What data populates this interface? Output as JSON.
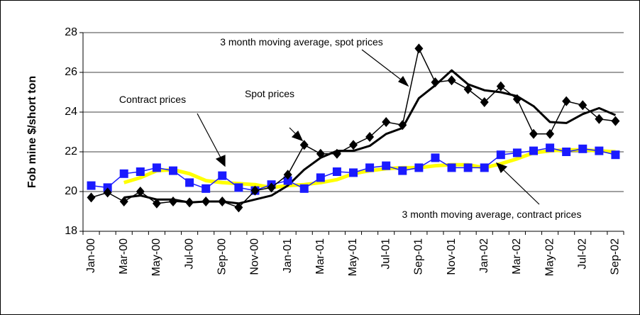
{
  "chart_data": {
    "type": "line",
    "y_label": "Fob mine $/short ton",
    "categories": [
      "Jan-00",
      null,
      "Mar-00",
      null,
      "May-00",
      null,
      "Jul-00",
      null,
      "Sep-00",
      null,
      "Nov-00",
      null,
      "Jan-01",
      null,
      "Mar-01",
      null,
      "May-01",
      null,
      "Jul-01",
      null,
      "Sep-01",
      null,
      "Nov-01",
      null,
      "Jan-02",
      null,
      "Mar-02",
      null,
      "May-02",
      null,
      "Jul-02",
      null,
      "Sep-02"
    ],
    "series": [
      {
        "name": "Spot prices",
        "color": "#000000",
        "marker": "diamond",
        "values": [
          19.7,
          19.95,
          19.5,
          20.0,
          19.4,
          19.5,
          19.45,
          19.5,
          19.5,
          19.2,
          20.05,
          20.2,
          20.85,
          22.35,
          21.9,
          21.9,
          22.35,
          22.75,
          23.5,
          23.35,
          27.2,
          25.5,
          25.6,
          25.15,
          24.5,
          25.3,
          24.65,
          22.9,
          22.9,
          24.55,
          24.35,
          23.65,
          23.55
        ]
      },
      {
        "name": "Contract prices",
        "color": "#1a1aff",
        "marker": "square",
        "values": [
          20.3,
          20.2,
          20.9,
          21.0,
          21.2,
          21.05,
          20.45,
          20.15,
          20.8,
          20.2,
          20.05,
          20.35,
          20.55,
          20.15,
          20.7,
          21.0,
          20.95,
          21.2,
          21.3,
          21.05,
          21.2,
          21.7,
          21.2,
          21.2,
          21.2,
          21.85,
          21.95,
          22.05,
          22.2,
          22.0,
          22.15,
          22.05,
          21.85
        ]
      },
      {
        "name": "3 month moving average, spot prices",
        "color": "#000000",
        "width": 3,
        "values": [
          null,
          null,
          19.7,
          19.8,
          19.6,
          19.6,
          19.45,
          19.5,
          19.5,
          19.4,
          19.6,
          19.8,
          20.3,
          21.1,
          21.7,
          22.05,
          22.05,
          22.3,
          22.9,
          23.2,
          24.7,
          25.35,
          26.1,
          25.4,
          25.1,
          25.0,
          24.8,
          24.3,
          23.5,
          23.45,
          23.9,
          24.2,
          23.85
        ]
      },
      {
        "name": "3 month moving average, contract prices",
        "color": "#ffff00",
        "width": 5,
        "values": [
          null,
          null,
          20.45,
          20.7,
          21.05,
          21.1,
          20.9,
          20.55,
          20.45,
          20.4,
          20.35,
          20.2,
          20.3,
          20.35,
          20.45,
          20.6,
          20.9,
          21.05,
          21.15,
          21.2,
          21.2,
          21.3,
          21.35,
          21.35,
          21.2,
          21.4,
          21.65,
          21.95,
          22.05,
          22.1,
          22.1,
          22.05,
          22.0
        ]
      }
    ],
    "ylim": [
      18,
      28
    ],
    "yticks": [
      18,
      20,
      22,
      24,
      26,
      28
    ],
    "grid": true
  }
}
